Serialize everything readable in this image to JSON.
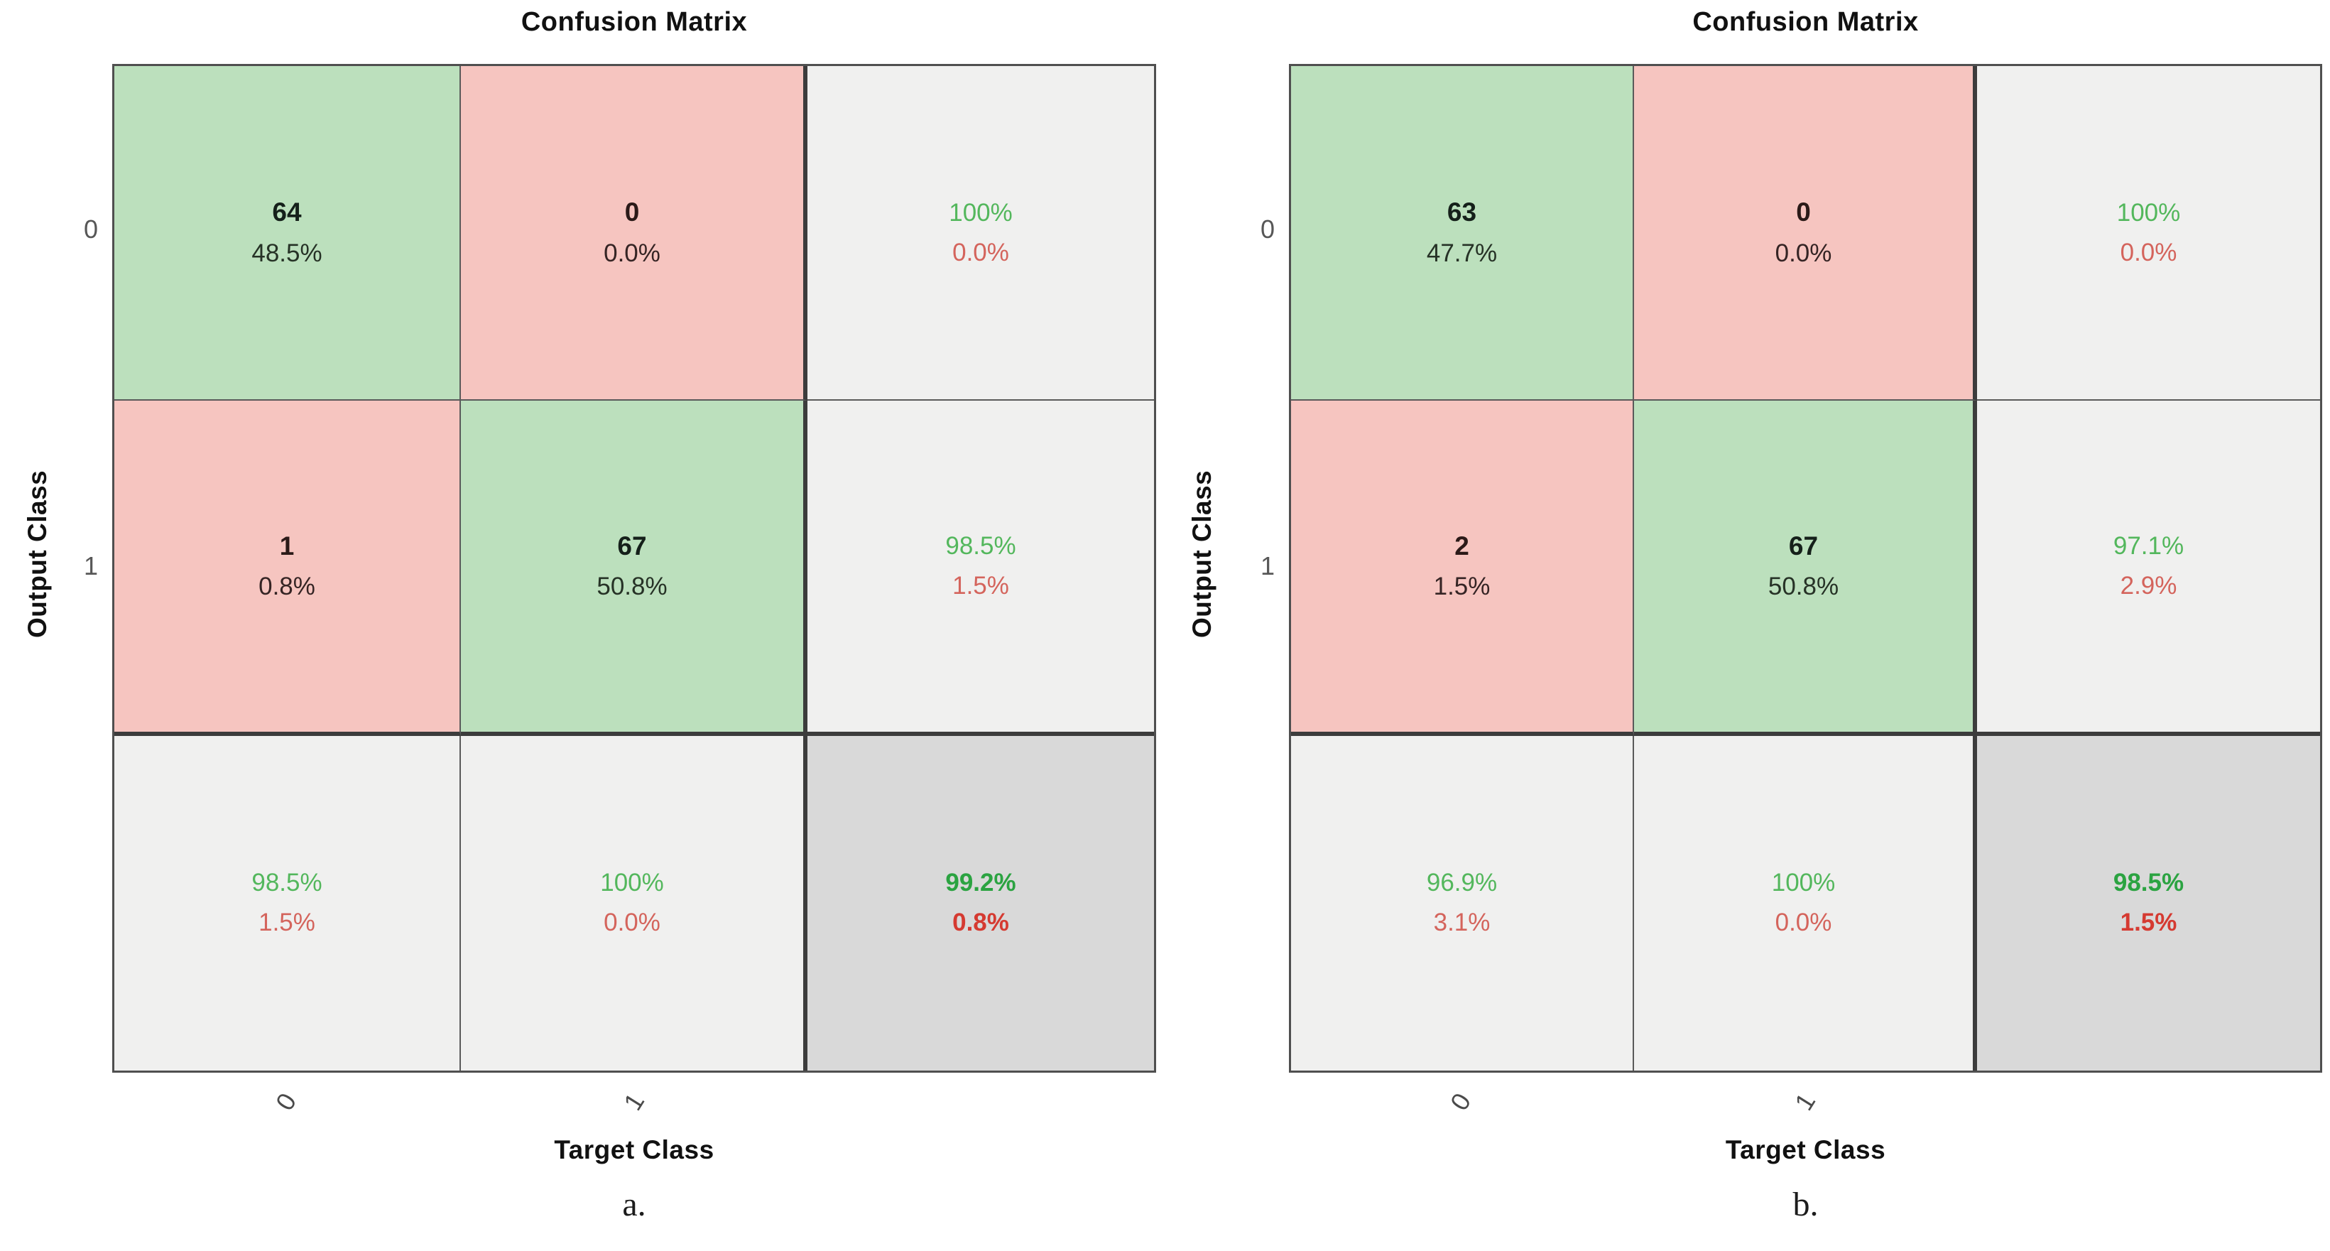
{
  "colors": {
    "correct_cell": "#bce0bd",
    "incorrect_cell": "#f6c5c0",
    "summary_cell": "#f0f0ef",
    "total_cell": "#d9d9d9",
    "summary_positive_text": "#53b75c",
    "summary_negative_text": "#d4645c",
    "total_positive_text": "#2ba341",
    "total_negative_text": "#d53a31",
    "grid_line": "#4f4f4f"
  },
  "chart_data": [
    {
      "type": "heatmap",
      "title": "Confusion Matrix",
      "subtitle": "a.",
      "xlabel": "Target Class",
      "ylabel": "Output Class",
      "classes": [
        "0",
        "1"
      ],
      "counts": [
        [
          64,
          0
        ],
        [
          1,
          67
        ]
      ],
      "count_pct": [
        [
          "48.5%",
          "0.0%"
        ],
        [
          "0.8%",
          "50.8%"
        ]
      ],
      "row_summary": [
        [
          "100%",
          "0.0%"
        ],
        [
          "98.5%",
          "1.5%"
        ]
      ],
      "col_summary": [
        [
          "98.5%",
          "1.5%"
        ],
        [
          "100%",
          "0.0%"
        ]
      ],
      "overall": [
        "99.2%",
        "0.8%"
      ]
    },
    {
      "type": "heatmap",
      "title": "Confusion Matrix",
      "subtitle": "b.",
      "xlabel": "Target Class",
      "ylabel": "Output Class",
      "classes": [
        "0",
        "1"
      ],
      "counts": [
        [
          63,
          0
        ],
        [
          2,
          67
        ]
      ],
      "count_pct": [
        [
          "47.7%",
          "0.0%"
        ],
        [
          "1.5%",
          "50.8%"
        ]
      ],
      "row_summary": [
        [
          "100%",
          "0.0%"
        ],
        [
          "97.1%",
          "2.9%"
        ]
      ],
      "col_summary": [
        [
          "96.9%",
          "3.1%"
        ],
        [
          "100%",
          "0.0%"
        ]
      ],
      "overall": [
        "98.5%",
        "1.5%"
      ]
    }
  ]
}
